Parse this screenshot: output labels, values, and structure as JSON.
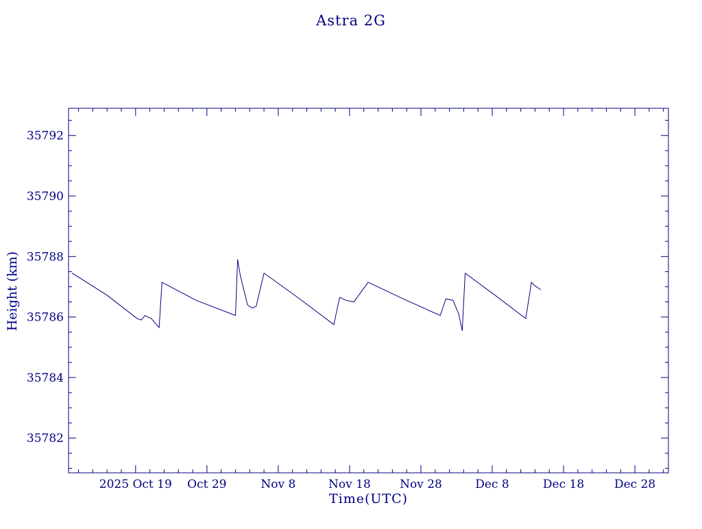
{
  "page": {
    "background": "#ffffff",
    "accent": "#000080"
  },
  "chart_data": {
    "type": "line",
    "title": "Astra 2G",
    "xlabel": "Time(UTC)",
    "ylabel": "Height (km)",
    "x_unit": "days relative to 2025 Oct 19 00:00 UTC",
    "xlim": [
      -9.4,
      74.7
    ],
    "ylim": [
      35780.85,
      35792.9
    ],
    "grid": false,
    "legend": "none",
    "line_color": "#000080",
    "axis_color": "#000080",
    "x_minor_step": 2,
    "y_minor_step": 0.5,
    "x_ticks": [
      {
        "value": 0,
        "label": "2025 Oct 19"
      },
      {
        "value": 10,
        "label": "Oct 29"
      },
      {
        "value": 20,
        "label": "Nov 8"
      },
      {
        "value": 30,
        "label": "Nov 18"
      },
      {
        "value": 40,
        "label": "Nov 28"
      },
      {
        "value": 50,
        "label": "Dec 8"
      },
      {
        "value": 60,
        "label": "Dec 18"
      },
      {
        "value": 70,
        "label": "Dec 28"
      }
    ],
    "y_ticks": [
      {
        "value": 35782,
        "label": "35782"
      },
      {
        "value": 35784,
        "label": "35784"
      },
      {
        "value": 35786,
        "label": "35786"
      },
      {
        "value": 35788,
        "label": "35788"
      },
      {
        "value": 35790,
        "label": "35790"
      },
      {
        "value": 35792,
        "label": "35792"
      }
    ],
    "series": [
      {
        "name": "height_km",
        "points": [
          [
            -8.9,
            35787.45
          ],
          [
            -4.0,
            35786.72
          ],
          [
            0.2,
            35785.95
          ],
          [
            0.8,
            35785.9
          ],
          [
            1.3,
            35786.05
          ],
          [
            2.2,
            35785.95
          ],
          [
            3.3,
            35785.65
          ],
          [
            3.7,
            35787.15
          ],
          [
            8.5,
            35786.55
          ],
          [
            14.0,
            35786.05
          ],
          [
            14.3,
            35787.9
          ],
          [
            14.7,
            35787.35
          ],
          [
            15.7,
            35786.4
          ],
          [
            16.3,
            35786.3
          ],
          [
            16.9,
            35786.35
          ],
          [
            18.0,
            35787.45
          ],
          [
            23.0,
            35786.6
          ],
          [
            27.8,
            35785.75
          ],
          [
            28.6,
            35786.65
          ],
          [
            29.5,
            35786.55
          ],
          [
            30.6,
            35786.5
          ],
          [
            32.6,
            35787.15
          ],
          [
            37.5,
            35786.6
          ],
          [
            42.7,
            35786.05
          ],
          [
            43.5,
            35786.6
          ],
          [
            44.5,
            35786.55
          ],
          [
            45.3,
            35786.1
          ],
          [
            45.8,
            35785.55
          ],
          [
            46.2,
            35787.45
          ],
          [
            50.5,
            35786.7
          ],
          [
            54.7,
            35785.95
          ],
          [
            55.5,
            35787.15
          ],
          [
            55.9,
            35787.05
          ],
          [
            56.8,
            35786.9
          ]
        ]
      }
    ]
  }
}
